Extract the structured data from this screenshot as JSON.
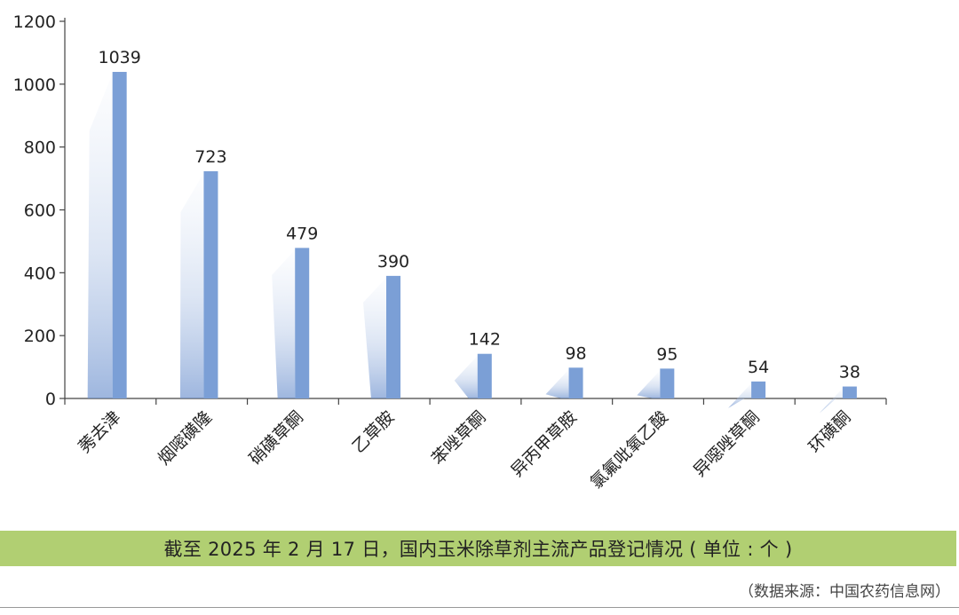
{
  "chart_data": {
    "type": "bar",
    "categories": [
      "莠去津",
      "烟嘧磺隆",
      "硝磺草酮",
      "乙草胺",
      "苯唑草酮",
      "异丙甲草胺",
      "氯氟吡氧乙酸",
      "异噁唑草酮",
      "环磺酮"
    ],
    "values": [
      1039,
      723,
      479,
      390,
      142,
      98,
      95,
      54,
      38
    ],
    "data_labels": [
      "1039",
      "723",
      "479",
      "390",
      "142",
      "98",
      "95",
      "54",
      "38"
    ],
    "ylim": [
      0,
      1200
    ],
    "yticks": [
      0,
      200,
      400,
      600,
      800,
      1000,
      1200
    ],
    "ytick_labels": [
      "0",
      "200",
      "400",
      "600",
      "800",
      "1000",
      "1200"
    ],
    "title": "",
    "xlabel": "",
    "ylabel": "",
    "grid": false,
    "bar_color": "#7b9fd6"
  },
  "caption": "截至 2025 年 2 月 17 日，国内玉米除草剂主流产品登记情况 ( 单位 : 个 )",
  "source": "（数据来源：中国农药信息网）",
  "colors": {
    "caption_band": "#b1cf72",
    "axis": "#444444"
  }
}
